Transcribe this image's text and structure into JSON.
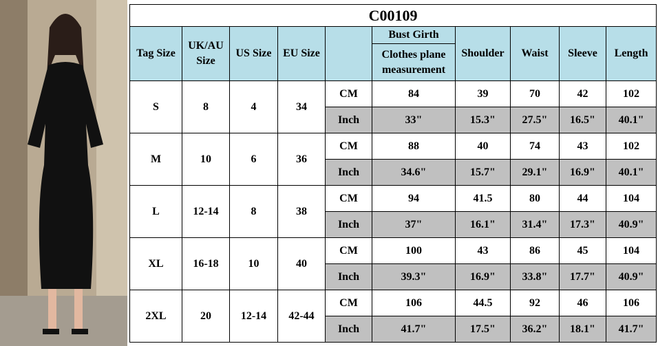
{
  "table": {
    "title": "C00109",
    "headers": {
      "tag": "Tag Size",
      "uk": "UK/AU Size",
      "us": "US Size",
      "eu": "EU Size",
      "bust": "Bust Girth",
      "bust_note": "Clothes plane measurement",
      "shoulder": "Shoulder",
      "waist": "Waist",
      "sleeve": "Sleeve",
      "length": "Length"
    },
    "sizes": [
      {
        "tag": "S",
        "uk": "8",
        "us": "4",
        "eu": "34",
        "rows": [
          {
            "unit": "CM",
            "values": [
              "84",
              "39",
              "70",
              "42",
              "102"
            ]
          },
          {
            "unit": "Inch",
            "values": [
              "33\"",
              "15.3\"",
              "27.5\"",
              "16.5\"",
              "40.1\""
            ]
          }
        ]
      },
      {
        "tag": "M",
        "uk": "10",
        "us": "6",
        "eu": "36",
        "rows": [
          {
            "unit": "CM",
            "values": [
              "88",
              "40",
              "74",
              "43",
              "102"
            ]
          },
          {
            "unit": "Inch",
            "values": [
              "34.6\"",
              "15.7\"",
              "29.1\"",
              "16.9\"",
              "40.1\""
            ]
          }
        ]
      },
      {
        "tag": "L",
        "uk": "12-14",
        "us": "8",
        "eu": "38",
        "rows": [
          {
            "unit": "CM",
            "values": [
              "94",
              "41.5",
              "80",
              "44",
              "104"
            ]
          },
          {
            "unit": "Inch",
            "values": [
              "37\"",
              "16.1\"",
              "31.4\"",
              "17.3\"",
              "40.9\""
            ]
          }
        ]
      },
      {
        "tag": "XL",
        "uk": "16-18",
        "us": "10",
        "eu": "40",
        "rows": [
          {
            "unit": "CM",
            "values": [
              "100",
              "43",
              "86",
              "45",
              "104"
            ]
          },
          {
            "unit": "Inch",
            "values": [
              "39.3\"",
              "16.9\"",
              "33.8\"",
              "17.7\"",
              "40.9\""
            ]
          }
        ]
      },
      {
        "tag": "2XL",
        "uk": "20",
        "us": "12-14",
        "eu": "42-44",
        "rows": [
          {
            "unit": "CM",
            "values": [
              "106",
              "44.5",
              "92",
              "46",
              "106"
            ]
          },
          {
            "unit": "Inch",
            "values": [
              "41.7\"",
              "17.5\"",
              "36.2\"",
              "18.1\"",
              "41.7\""
            ]
          }
        ]
      }
    ]
  }
}
